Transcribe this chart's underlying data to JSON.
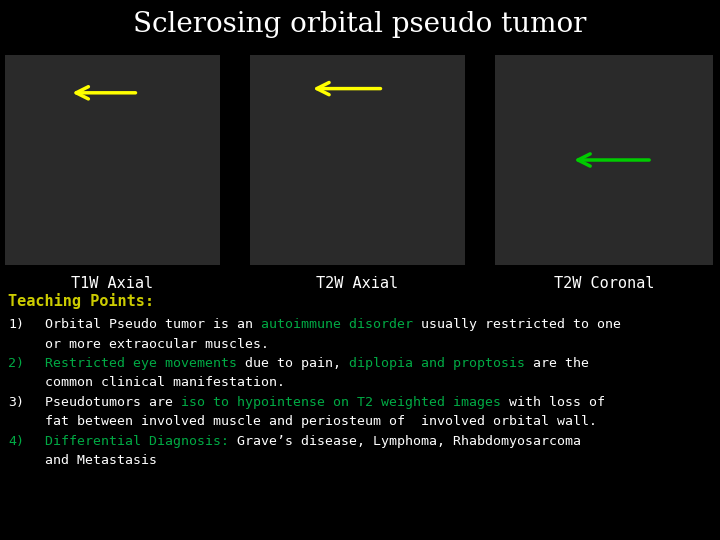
{
  "title": "Sclerosing orbital pseudo tumor",
  "title_bg": "#0d2b6b",
  "title_color": "#ffffff",
  "title_fontsize": 20,
  "bg_color": "#000000",
  "image_labels": [
    "T1W Axial",
    "T2W Axial",
    "T2W Coronal"
  ],
  "image_label_color": "#ffffff",
  "image_label_fontsize": 11,
  "teaching_points_label": "Teaching Points:",
  "teaching_points_color": "#cccc00",
  "teaching_points_fontsize": 11,
  "green_color": "#00aa44",
  "white_color": "#ffffff",
  "text_fontsize": 9.5,
  "panel_bg": "#1a1a1a",
  "text_rows": [
    {
      "number": "1)",
      "num_color": "#ffffff",
      "parts": [
        [
          "Orbital Pseudo tumor is an ",
          "#ffffff"
        ],
        [
          "autoimmune disorder",
          "#00aa44"
        ],
        [
          " usually restricted to one",
          "#ffffff"
        ]
      ]
    },
    {
      "number": "",
      "num_color": "#ffffff",
      "parts": [
        [
          "or more extraocular muscles.",
          "#ffffff"
        ]
      ]
    },
    {
      "number": "2)",
      "num_color": "#00aa44",
      "parts": [
        [
          "Restricted eye movements",
          "#00aa44"
        ],
        [
          " due to pain, ",
          "#ffffff"
        ],
        [
          "diplopia and proptosis",
          "#00aa44"
        ],
        [
          " are the",
          "#ffffff"
        ]
      ]
    },
    {
      "number": "",
      "num_color": "#ffffff",
      "parts": [
        [
          "common clinical manifestation.",
          "#ffffff"
        ]
      ]
    },
    {
      "number": "3)",
      "num_color": "#ffffff",
      "parts": [
        [
          "Pseudotumors are ",
          "#ffffff"
        ],
        [
          "iso to hypointense on T2 weighted images",
          "#00aa44"
        ],
        [
          " with loss of",
          "#ffffff"
        ]
      ]
    },
    {
      "number": "",
      "num_color": "#ffffff",
      "parts": [
        [
          "fat between involved muscle and periosteum of  involved orbital wall.",
          "#ffffff"
        ]
      ]
    },
    {
      "number": "4)",
      "num_color": "#00aa44",
      "parts": [
        [
          "Differential Diagnosis: ",
          "#00aa44"
        ],
        [
          "Grave’s disease, Lymphoma, Rhabdomyosarcoma",
          "#ffffff"
        ]
      ]
    },
    {
      "number": "",
      "num_color": "#ffffff",
      "parts": [
        [
          "and Metastasis",
          "#ffffff"
        ]
      ]
    }
  ]
}
